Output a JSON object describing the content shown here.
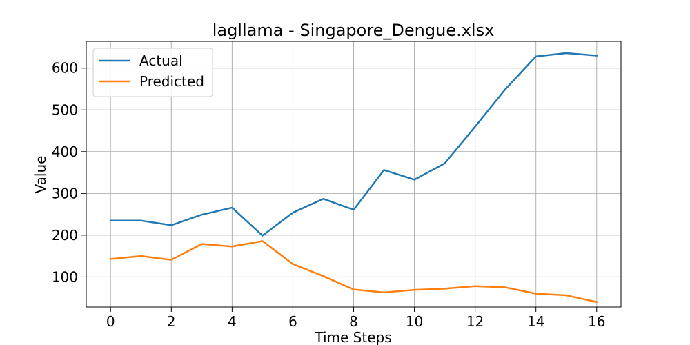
{
  "chart_data": {
    "type": "line",
    "title": "lagllama - Singapore_Dengue.xlsx",
    "xlabel": "Time Steps",
    "ylabel": "Value",
    "x": [
      0,
      1,
      2,
      3,
      4,
      5,
      6,
      7,
      8,
      9,
      10,
      11,
      12,
      13,
      14,
      15,
      16
    ],
    "xlim": [
      -0.8,
      16.8
    ],
    "ylim": [
      28,
      664
    ],
    "xticks": [
      0,
      2,
      4,
      6,
      8,
      10,
      12,
      14,
      16
    ],
    "yticks": [
      100,
      200,
      300,
      400,
      500,
      600
    ],
    "grid": true,
    "legend_position": "top-left",
    "series": [
      {
        "name": "Actual",
        "color": "#1f77b4",
        "values": [
          235,
          235,
          224,
          249,
          266,
          199,
          254,
          287,
          261,
          356,
          333,
          372,
          460,
          550,
          628,
          636,
          630
        ]
      },
      {
        "name": "Predicted",
        "color": "#ff7f0e",
        "values": [
          143,
          150,
          141,
          179,
          173,
          186,
          131,
          102,
          70,
          63,
          69,
          72,
          78,
          75,
          60,
          56,
          40
        ]
      }
    ]
  }
}
